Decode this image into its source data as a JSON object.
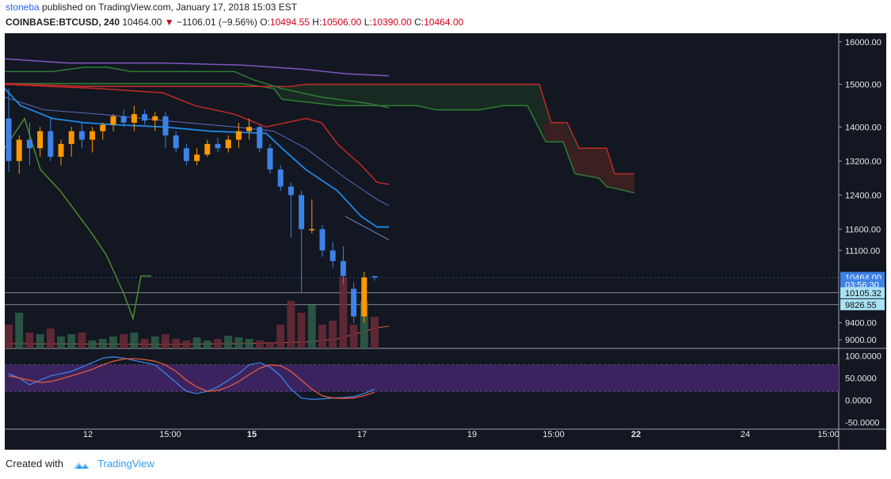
{
  "header": {
    "user": "stoneba",
    "published": "published on TradingView.com, January 17, 2018 15:03 EST",
    "symbol": "COINBASE:BTCUSD, 240",
    "last": "10464.00",
    "change": "−1106.01 (−9.56%)",
    "o_label": "O:",
    "o_value": "10494.55",
    "h_label": "H:",
    "h_value": "10506.00",
    "l_label": "L:",
    "l_value": "10390.00",
    "c_label": "C:",
    "c_value": "10464.00"
  },
  "footer": {
    "created_with": "Created with",
    "brand": "TradingView"
  },
  "colors": {
    "background": "#121721",
    "up": "#ff9800",
    "down": "#3d82e6",
    "ma_fast": "#1e88e5",
    "ichimoku_green": "#2e7d32",
    "ichimoku_red": "#c62828",
    "purple": "#7e57c2"
  },
  "chart_data": [
    {
      "type": "candlestick",
      "title": "COINBASE:BTCUSD, 240",
      "x_ticks": [
        "12",
        "15:00",
        "15",
        "17",
        "19",
        "15:00",
        "22",
        "24",
        "15:00"
      ],
      "y_ticks": [
        "16000.00",
        "15000.00",
        "14000.00",
        "13200.00",
        "12400.00",
        "11600.00",
        "11100.00",
        "9400.00",
        "9000.00"
      ],
      "ylim": [
        8800,
        16200
      ],
      "price_labels": [
        "10464.00",
        "03:56:30",
        "10105.32",
        "9826.55"
      ],
      "candles": [
        {
          "o": 14200,
          "h": 14900,
          "l": 12950,
          "c": 13200
        },
        {
          "o": 13200,
          "h": 13800,
          "l": 12900,
          "c": 13700
        },
        {
          "o": 13700,
          "h": 14100,
          "l": 13100,
          "c": 13500
        },
        {
          "o": 13500,
          "h": 14000,
          "l": 13300,
          "c": 13900
        },
        {
          "o": 13900,
          "h": 14200,
          "l": 13200,
          "c": 13300
        },
        {
          "o": 13300,
          "h": 13700,
          "l": 13100,
          "c": 13600
        },
        {
          "o": 13600,
          "h": 14000,
          "l": 13300,
          "c": 13900
        },
        {
          "o": 13900,
          "h": 14100,
          "l": 13500,
          "c": 13700
        },
        {
          "o": 13700,
          "h": 14000,
          "l": 13400,
          "c": 13900
        },
        {
          "o": 13900,
          "h": 14100,
          "l": 13700,
          "c": 14050
        },
        {
          "o": 14050,
          "h": 14300,
          "l": 13900,
          "c": 14250
        },
        {
          "o": 14250,
          "h": 14400,
          "l": 14000,
          "c": 14100
        },
        {
          "o": 14100,
          "h": 14500,
          "l": 13900,
          "c": 14300
        },
        {
          "o": 14300,
          "h": 14400,
          "l": 14050,
          "c": 14150
        },
        {
          "o": 14150,
          "h": 14350,
          "l": 13900,
          "c": 14250
        },
        {
          "o": 14250,
          "h": 14350,
          "l": 13500,
          "c": 13800
        },
        {
          "o": 13800,
          "h": 13900,
          "l": 13400,
          "c": 13500
        },
        {
          "o": 13500,
          "h": 13600,
          "l": 13100,
          "c": 13200
        },
        {
          "o": 13200,
          "h": 13500,
          "l": 13100,
          "c": 13350
        },
        {
          "o": 13350,
          "h": 13700,
          "l": 13300,
          "c": 13600
        },
        {
          "o": 13600,
          "h": 13750,
          "l": 13400,
          "c": 13500
        },
        {
          "o": 13500,
          "h": 13800,
          "l": 13400,
          "c": 13700
        },
        {
          "o": 13700,
          "h": 14100,
          "l": 13500,
          "c": 13900
        },
        {
          "o": 13900,
          "h": 14200,
          "l": 13700,
          "c": 14000
        },
        {
          "o": 14000,
          "h": 14050,
          "l": 13400,
          "c": 13500
        },
        {
          "o": 13500,
          "h": 13600,
          "l": 12900,
          "c": 13000
        },
        {
          "o": 13000,
          "h": 13100,
          "l": 12500,
          "c": 12600
        },
        {
          "o": 12600,
          "h": 12700,
          "l": 11400,
          "c": 12400
        },
        {
          "o": 12400,
          "h": 12500,
          "l": 10100,
          "c": 11600
        },
        {
          "o": 11600,
          "h": 12300,
          "l": 11500,
          "c": 11600
        },
        {
          "o": 11600,
          "h": 11700,
          "l": 10950,
          "c": 11100
        },
        {
          "o": 11100,
          "h": 11300,
          "l": 10700,
          "c": 10850
        },
        {
          "o": 10850,
          "h": 11200,
          "l": 10300,
          "c": 10500
        },
        {
          "o": 10200,
          "h": 10350,
          "l": 9400,
          "c": 9550
        },
        {
          "o": 9550,
          "h": 10600,
          "l": 9400,
          "c": 10465
        },
        {
          "o": 10494.55,
          "h": 10506,
          "l": 10390,
          "c": 10464
        }
      ]
    },
    {
      "type": "line",
      "title": "Stochastic RSI",
      "y_ticks": [
        "100.0000",
        "50.0000",
        "0.0000",
        "-50.0000"
      ],
      "ylim": [
        -60,
        110
      ],
      "band": [
        20,
        80
      ],
      "series": [
        {
          "color": "#3d82e6",
          "values": [
            60,
            50,
            35,
            45,
            55,
            60,
            65,
            75,
            85,
            95,
            98,
            95,
            90,
            85,
            80,
            60,
            40,
            20,
            15,
            20,
            30,
            45,
            60,
            80,
            85,
            75,
            55,
            25,
            5,
            2,
            3,
            5,
            6,
            8,
            15,
            25
          ]
        },
        {
          "color": "#e65a3c",
          "values": [
            55,
            50,
            45,
            40,
            42,
            48,
            55,
            62,
            70,
            80,
            88,
            93,
            94,
            92,
            88,
            80,
            65,
            45,
            30,
            20,
            22,
            30,
            42,
            58,
            72,
            80,
            78,
            65,
            45,
            25,
            10,
            5,
            4,
            5,
            10,
            18
          ]
        }
      ]
    }
  ]
}
